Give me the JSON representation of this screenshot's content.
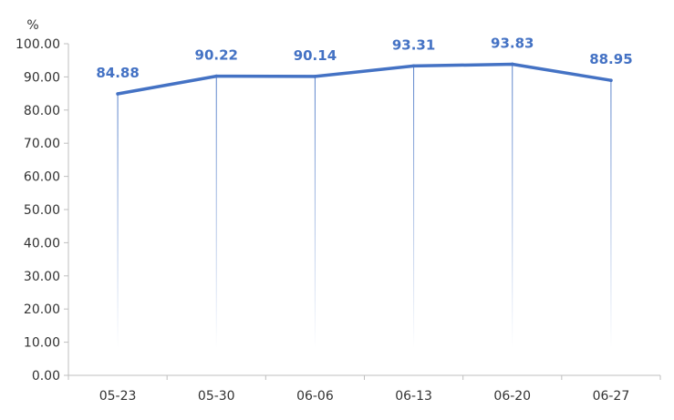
{
  "chart_data": {
    "type": "line",
    "title": "",
    "xlabel": "",
    "ylabel": "%",
    "categories": [
      "05-23",
      "05-30",
      "06-06",
      "06-13",
      "06-20",
      "06-27"
    ],
    "series": [
      {
        "values": [
          84.88,
          90.22,
          90.14,
          93.31,
          93.83,
          88.95
        ]
      }
    ],
    "data_labels": [
      "84.88",
      "90.22",
      "90.14",
      "93.31",
      "93.83",
      "88.95"
    ],
    "y_ticks": [
      "0.00",
      "10.00",
      "20.00",
      "30.00",
      "40.00",
      "50.00",
      "60.00",
      "70.00",
      "80.00",
      "90.00",
      "100.00"
    ],
    "ylim": [
      0,
      100
    ],
    "grid": false,
    "legend": "none",
    "colors": {
      "line": "#4472C4",
      "label": "#4472C4",
      "axis": "#BFBFBF",
      "drop_line": "#4472C4"
    }
  }
}
